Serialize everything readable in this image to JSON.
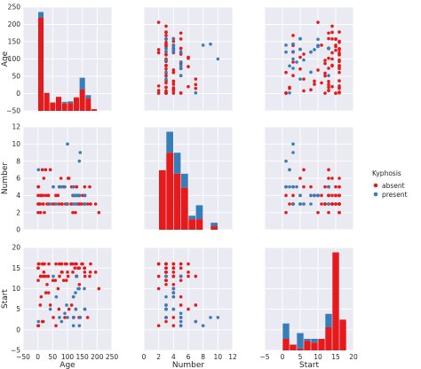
{
  "chart_data": {
    "type": "pairplot",
    "variables": [
      "Age",
      "Number",
      "Start"
    ],
    "hue_variable": "Kyphosis",
    "legend": {
      "title": "Kyphosis",
      "entries": [
        "absent",
        "present"
      ],
      "placement": "right"
    },
    "colors": {
      "absent": "#e41a1c",
      "present": "#377eb8",
      "panel_bg": "#eaeaf2",
      "grid": "#ffffff"
    },
    "grid": true,
    "axes": {
      "Age": {
        "label": "Age",
        "lim": [
          -50,
          250
        ],
        "ticks": [
          "−50",
          "0",
          "50",
          "100",
          "150",
          "200",
          "250"
        ],
        "tick_values": [
          -50,
          0,
          50,
          100,
          150,
          200,
          250
        ]
      },
      "Number": {
        "label": "Number",
        "lim": [
          0,
          12
        ],
        "ticks": [
          "0",
          "2",
          "4",
          "6",
          "8",
          "10",
          "12"
        ],
        "tick_values": [
          0,
          2,
          4,
          6,
          8,
          10,
          12
        ]
      },
      "Start": {
        "label": "Start",
        "lim": [
          -5,
          20
        ],
        "ticks": [
          "−5",
          "0",
          "5",
          "10",
          "15",
          "20"
        ],
        "tick_values": [
          -5,
          0,
          5,
          10,
          15,
          20
        ]
      }
    },
    "diagonal_histograms": {
      "Age": {
        "bins": [
          0,
          20,
          40,
          60,
          80,
          100,
          120,
          140,
          160,
          180,
          200
        ],
        "absent": [
          166,
          32,
          15,
          25,
          13,
          14,
          24,
          38,
          22,
          3
        ],
        "present": [
          10,
          0,
          0,
          0,
          3,
          3,
          0,
          21,
          6,
          0
        ]
      },
      "Number": {
        "bins": [
          2,
          3,
          4,
          5,
          6,
          7,
          8,
          9,
          10
        ],
        "absent": [
          17,
          22,
          16,
          12,
          3,
          3,
          0,
          1
        ],
        "present": [
          0,
          6,
          6,
          4,
          1,
          4,
          0,
          1
        ]
      },
      "Start": {
        "bins": [
          0,
          2,
          4,
          6,
          8,
          10,
          12,
          14,
          16,
          18
        ],
        "absent": [
          6,
          3,
          1,
          5,
          4,
          6,
          12,
          51,
          16
        ],
        "present": [
          8,
          0,
          8,
          1,
          2,
          0,
          7,
          0,
          0
        ]
      }
    },
    "points": {
      "absent": {
        "Age": [
          71,
          158,
          128,
          1,
          1,
          61,
          37,
          113,
          59,
          82,
          148,
          18,
          1,
          168,
          1,
          78,
          175,
          80,
          27,
          22,
          105,
          96,
          131,
          15,
          9,
          8,
          100,
          4,
          151,
          31,
          125,
          130,
          112,
          140,
          93,
          1,
          52,
          20,
          91,
          73,
          35,
          143,
          61,
          97,
          139,
          136,
          131,
          121,
          177,
          68,
          9,
          139,
          2,
          140,
          72,
          2,
          120,
          51,
          102,
          130,
          114,
          81,
          118,
          118,
          17,
          195,
          159,
          18,
          15,
          158,
          127,
          87,
          206,
          11,
          178,
          157,
          26,
          120,
          42,
          36
        ],
        "Number": [
          3,
          3,
          4,
          5,
          4,
          4,
          3,
          3,
          3,
          3,
          3,
          3,
          2,
          3,
          3,
          6,
          5,
          3,
          4,
          2,
          6,
          3,
          5,
          7,
          2,
          3,
          3,
          3,
          4,
          3,
          4,
          3,
          3,
          4,
          3,
          3,
          5,
          6,
          5,
          5,
          4,
          3,
          4,
          3,
          4,
          3,
          4,
          3,
          3,
          4,
          4,
          3,
          5,
          4,
          5,
          3,
          5,
          3,
          6,
          5,
          5,
          3,
          2,
          4,
          4,
          3,
          4,
          3,
          4,
          5,
          2,
          5,
          2,
          4,
          3,
          3,
          7,
          4,
          7,
          4
        ],
        "Start": [
          5,
          14,
          5,
          1,
          15,
          16,
          16,
          16,
          12,
          14,
          16,
          2,
          1,
          3,
          15,
          16,
          13,
          14,
          9,
          16,
          5,
          12,
          13,
          2,
          13,
          6,
          14,
          16,
          16,
          11,
          15,
          13,
          16,
          11,
          16,
          12,
          3,
          14,
          3,
          13,
          13,
          3,
          1,
          16,
          10,
          15,
          13,
          3,
          14,
          10,
          13,
          3,
          1,
          15,
          16,
          16,
          8,
          12,
          13,
          16,
          6,
          16,
          16,
          14,
          16,
          14,
          13,
          13,
          16,
          15,
          16,
          12,
          10,
          8,
          16,
          15,
          13,
          3,
          6,
          9
        ]
      },
      "present": {
        "Age": [
          158,
          128,
          120,
          143,
          62,
          130,
          80,
          42,
          139,
          2,
          100,
          91,
          73,
          136,
          121,
          140,
          120,
          97,
          157,
          159,
          127,
          52
        ],
        "Number": [
          3,
          4,
          5,
          9,
          3,
          3,
          5,
          3,
          4,
          7,
          10,
          5,
          5,
          4,
          3,
          8,
          4,
          3,
          4,
          3,
          4,
          5
        ],
        "Start": [
          5,
          5,
          1,
          3,
          8,
          13,
          2,
          5,
          10,
          2,
          3,
          4,
          3,
          10,
          3,
          1,
          8,
          6,
          10,
          5,
          9,
          13
        ]
      }
    }
  }
}
